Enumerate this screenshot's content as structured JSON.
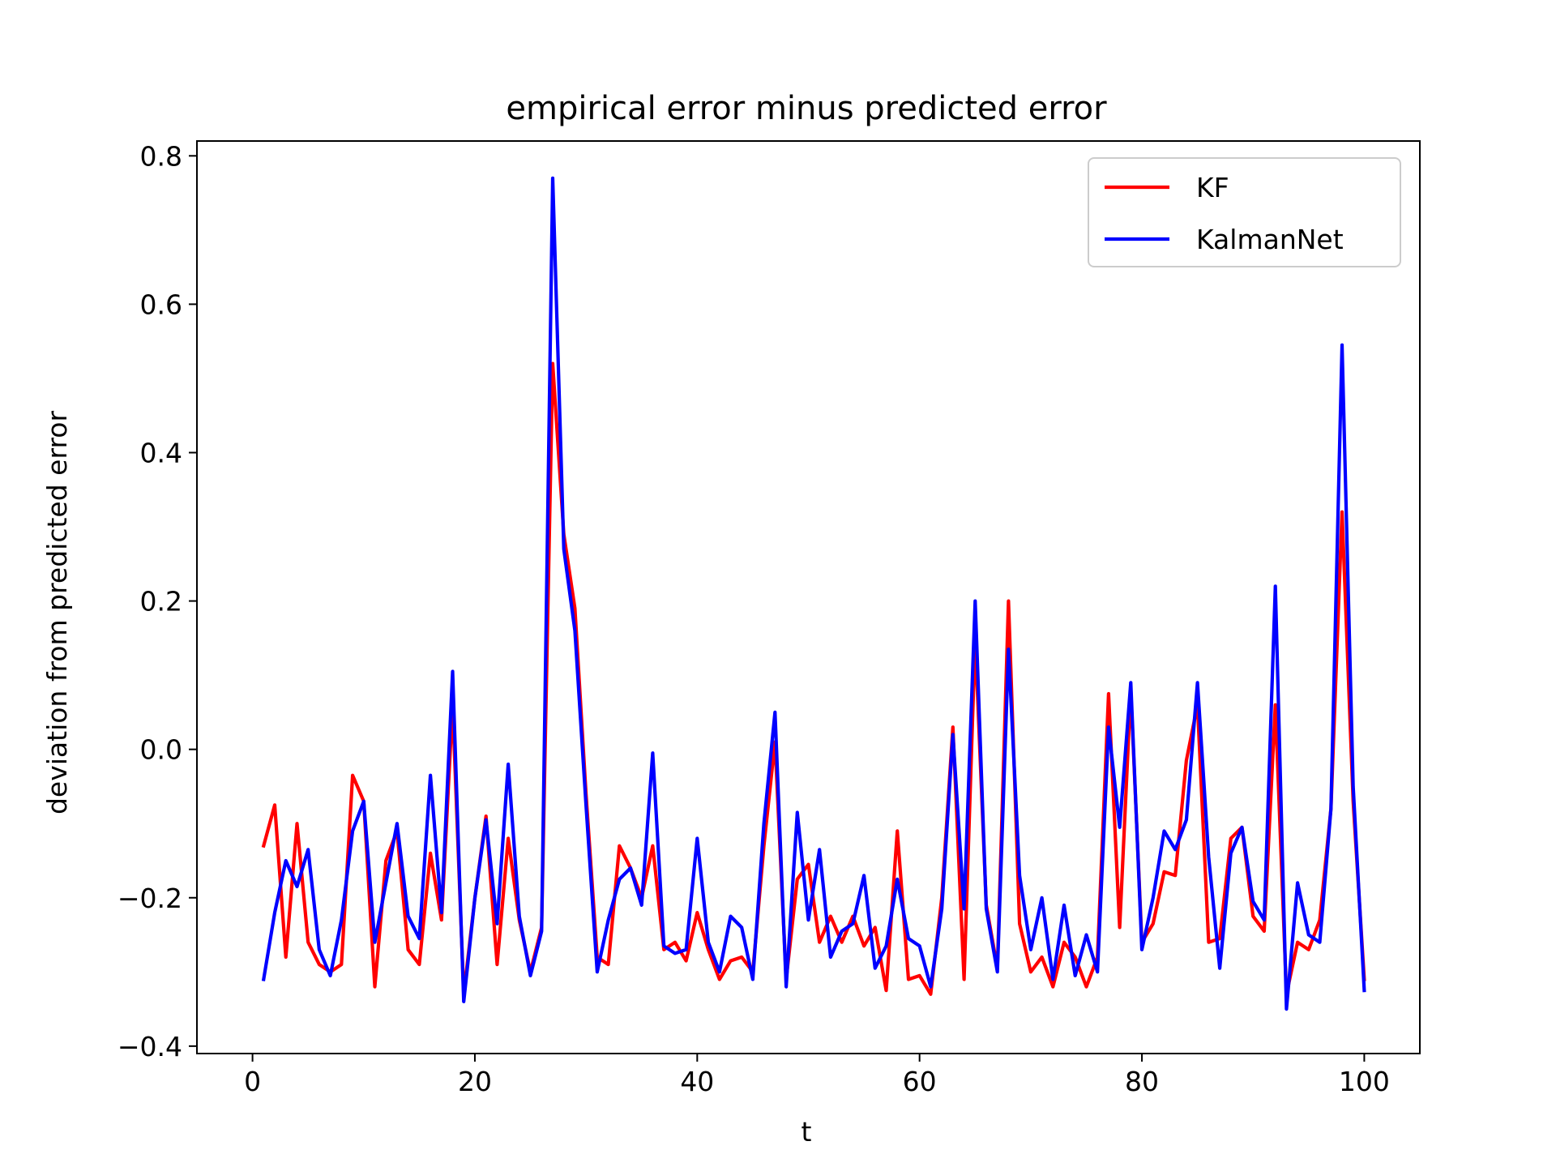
{
  "chart_data": {
    "type": "line",
    "title": "empirical error minus predicted error",
    "xlabel": "t",
    "ylabel": "deviation from predicted error",
    "xlim": [
      -5,
      105
    ],
    "ylim": [
      -0.41,
      0.82
    ],
    "xticks": [
      0,
      20,
      40,
      60,
      80,
      100
    ],
    "yticks": [
      -0.4,
      -0.2,
      0.0,
      0.2,
      0.4,
      0.6,
      0.8
    ],
    "ytick_labels": [
      "−0.4",
      "−0.2",
      "0.0",
      "0.2",
      "0.4",
      "0.6",
      "0.8"
    ],
    "grid": false,
    "legend_position": "top-right",
    "x": [
      1,
      2,
      3,
      4,
      5,
      6,
      7,
      8,
      9,
      10,
      11,
      12,
      13,
      14,
      15,
      16,
      17,
      18,
      19,
      20,
      21,
      22,
      23,
      24,
      25,
      26,
      27,
      28,
      29,
      30,
      31,
      32,
      33,
      34,
      35,
      36,
      37,
      38,
      39,
      40,
      41,
      42,
      43,
      44,
      45,
      46,
      47,
      48,
      49,
      50,
      51,
      52,
      53,
      54,
      55,
      56,
      57,
      58,
      59,
      60,
      61,
      62,
      63,
      64,
      65,
      66,
      67,
      68,
      69,
      70,
      71,
      72,
      73,
      74,
      75,
      76,
      77,
      78,
      79,
      80,
      81,
      82,
      83,
      84,
      85,
      86,
      87,
      88,
      89,
      90,
      91,
      92,
      93,
      94,
      95,
      96,
      97,
      98,
      99,
      100
    ],
    "series": [
      {
        "name": "KF",
        "color": "#ff0000",
        "values": [
          -0.13,
          -0.075,
          -0.28,
          -0.1,
          -0.26,
          -0.29,
          -0.3,
          -0.29,
          -0.035,
          -0.07,
          -0.32,
          -0.15,
          -0.11,
          -0.27,
          -0.29,
          -0.14,
          -0.23,
          0.06,
          -0.33,
          -0.2,
          -0.09,
          -0.29,
          -0.12,
          -0.23,
          -0.3,
          -0.24,
          0.52,
          0.29,
          0.19,
          -0.06,
          -0.28,
          -0.29,
          -0.13,
          -0.16,
          -0.2,
          -0.13,
          -0.27,
          -0.26,
          -0.285,
          -0.22,
          -0.27,
          -0.31,
          -0.285,
          -0.28,
          -0.3,
          -0.13,
          0.01,
          -0.31,
          -0.175,
          -0.155,
          -0.26,
          -0.225,
          -0.26,
          -0.225,
          -0.265,
          -0.24,
          -0.325,
          -0.11,
          -0.31,
          -0.305,
          -0.33,
          -0.2,
          0.03,
          -0.31,
          0.15,
          -0.21,
          -0.295,
          0.2,
          -0.235,
          -0.3,
          -0.28,
          -0.32,
          -0.26,
          -0.28,
          -0.32,
          -0.28,
          0.075,
          -0.24,
          0.08,
          -0.26,
          -0.235,
          -0.165,
          -0.17,
          -0.015,
          0.06,
          -0.26,
          -0.255,
          -0.12,
          -0.105,
          -0.225,
          -0.245,
          0.06,
          -0.33,
          -0.26,
          -0.27,
          -0.23,
          -0.08,
          0.32,
          -0.07,
          -0.31
        ]
      },
      {
        "name": "KalmanNet",
        "color": "#0000ff",
        "values": [
          -0.31,
          -0.22,
          -0.15,
          -0.185,
          -0.135,
          -0.27,
          -0.305,
          -0.23,
          -0.11,
          -0.07,
          -0.26,
          -0.18,
          -0.1,
          -0.225,
          -0.255,
          -0.035,
          -0.22,
          0.105,
          -0.34,
          -0.2,
          -0.095,
          -0.235,
          -0.02,
          -0.225,
          -0.305,
          -0.245,
          0.77,
          0.27,
          0.16,
          -0.075,
          -0.3,
          -0.23,
          -0.175,
          -0.16,
          -0.21,
          -0.005,
          -0.265,
          -0.275,
          -0.27,
          -0.12,
          -0.26,
          -0.3,
          -0.225,
          -0.24,
          -0.31,
          -0.1,
          0.05,
          -0.32,
          -0.085,
          -0.23,
          -0.135,
          -0.28,
          -0.245,
          -0.235,
          -0.17,
          -0.295,
          -0.265,
          -0.175,
          -0.255,
          -0.265,
          -0.32,
          -0.215,
          0.02,
          -0.215,
          0.2,
          -0.215,
          -0.3,
          0.135,
          -0.17,
          -0.27,
          -0.2,
          -0.31,
          -0.21,
          -0.305,
          -0.25,
          -0.3,
          0.03,
          -0.105,
          0.09,
          -0.27,
          -0.2,
          -0.11,
          -0.135,
          -0.095,
          0.09,
          -0.145,
          -0.295,
          -0.14,
          -0.105,
          -0.205,
          -0.23,
          0.22,
          -0.35,
          -0.18,
          -0.25,
          -0.26,
          -0.08,
          0.545,
          -0.05,
          -0.325
        ]
      }
    ]
  }
}
